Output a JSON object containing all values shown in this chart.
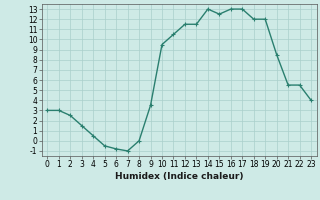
{
  "x": [
    0,
    1,
    2,
    3,
    4,
    5,
    6,
    7,
    8,
    9,
    10,
    11,
    12,
    13,
    14,
    15,
    16,
    17,
    18,
    19,
    20,
    21,
    22,
    23
  ],
  "y": [
    3.0,
    3.0,
    2.5,
    1.5,
    0.5,
    -0.5,
    -0.8,
    -1.0,
    0.0,
    3.5,
    9.5,
    10.5,
    11.5,
    11.5,
    13.0,
    12.5,
    13.0,
    13.0,
    12.0,
    12.0,
    8.5,
    5.5,
    5.5,
    4.0
  ],
  "line_color": "#2a7f6f",
  "marker_color": "#2a7f6f",
  "bg_color": "#ceeae6",
  "grid_color": "#aacfcb",
  "xlabel": "Humidex (Indice chaleur)",
  "xlim": [
    -0.5,
    23.5
  ],
  "ylim": [
    -1.5,
    13.5
  ],
  "xticks": [
    0,
    1,
    2,
    3,
    4,
    5,
    6,
    7,
    8,
    9,
    10,
    11,
    12,
    13,
    14,
    15,
    16,
    17,
    18,
    19,
    20,
    21,
    22,
    23
  ],
  "yticks": [
    -1,
    0,
    1,
    2,
    3,
    4,
    5,
    6,
    7,
    8,
    9,
    10,
    11,
    12,
    13
  ],
  "tick_fontsize": 5.5,
  "xlabel_fontsize": 6.5,
  "marker_size": 2.5,
  "line_width": 1.0
}
